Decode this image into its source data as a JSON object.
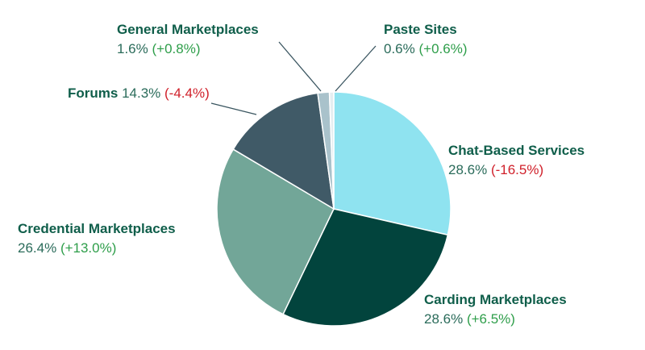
{
  "chart_data": {
    "type": "pie",
    "title": "",
    "colors": {
      "label_name": "#0f5e4a",
      "value_text": "#2a6b5a",
      "change_up": "#2e9e4a",
      "change_down": "#d0202a",
      "leader_line": "#3a5560"
    },
    "slices": [
      {
        "name": "Chat-Based Services",
        "value": 28.6,
        "value_label": "28.6%",
        "change_label": "(-16.5%)",
        "trend": "down",
        "color": "#8fe3f0"
      },
      {
        "name": "Carding Marketplaces",
        "value": 28.6,
        "value_label": "28.6%",
        "change_label": "(+6.5%)",
        "trend": "up",
        "color": "#02443d"
      },
      {
        "name": "Credential Marketplaces",
        "value": 26.4,
        "value_label": "26.4%",
        "change_label": "(+13.0%)",
        "trend": "up",
        "color": "#72a698"
      },
      {
        "name": "Forums",
        "value": 14.3,
        "value_label": "14.3%",
        "change_label": "(-4.4%)",
        "trend": "down",
        "color": "#405a67"
      },
      {
        "name": "General Marketplaces",
        "value": 1.6,
        "value_label": "1.6%",
        "change_label": "(+0.8%)",
        "trend": "up",
        "color": "#a9c2cb"
      },
      {
        "name": "Paste Sites",
        "value": 0.6,
        "value_label": "0.6%",
        "change_label": "(+0.6%)",
        "trend": "up",
        "color": "#e4eef1"
      }
    ]
  }
}
